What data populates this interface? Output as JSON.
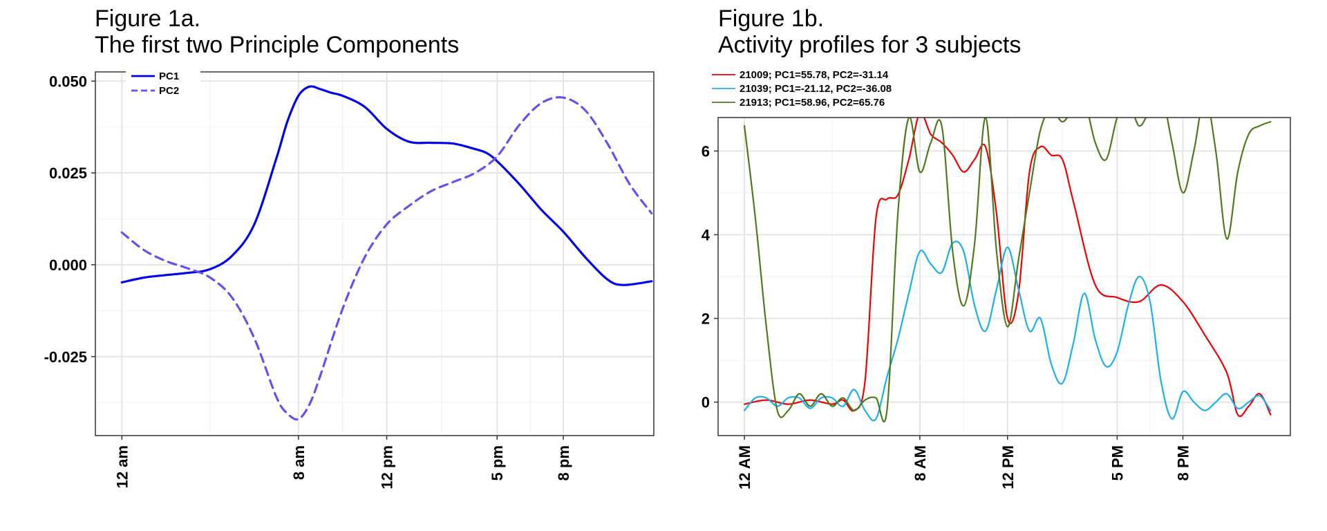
{
  "colors": {
    "grid": "#e5e5e5",
    "frame": "#333333",
    "background": "#ffffff"
  },
  "chart_data": [
    {
      "type": "line",
      "title": "Figure 1a.",
      "subtitle": "The first two Principle Components",
      "xlabel": "",
      "ylabel": "",
      "x_unit": "hour of day",
      "xlim": [
        -1.2,
        24.1
      ],
      "ylim": [
        -0.0465,
        0.0525
      ],
      "yticks": [
        0.05,
        0.025,
        0.0,
        -0.025
      ],
      "ytick_labels": [
        "0.050",
        "0.025",
        "0.000",
        "-0.025"
      ],
      "xticks": [
        0,
        8,
        12,
        17,
        20
      ],
      "xtick_labels": [
        "12 am",
        "8 am",
        "12 pm",
        "5 pm",
        "8 pm"
      ],
      "grid": true,
      "legend_position": "top-left",
      "series": [
        {
          "name": "PC1",
          "color": "#0000ee",
          "dash": "solid",
          "x": [
            0,
            1,
            2,
            3,
            4,
            5,
            6,
            7,
            7.5,
            8,
            8.5,
            9,
            9.5,
            10,
            11,
            12,
            13,
            14,
            15,
            16,
            16.5,
            17,
            18,
            19,
            20,
            21,
            22,
            22.7,
            24
          ],
          "y": [
            -0.0048,
            -0.0035,
            -0.0028,
            -0.0022,
            -0.0012,
            0.0025,
            0.011,
            0.029,
            0.039,
            0.046,
            0.0485,
            0.0478,
            0.0468,
            0.046,
            0.043,
            0.037,
            0.0335,
            0.0332,
            0.033,
            0.0315,
            0.0305,
            0.0282,
            0.022,
            0.015,
            0.009,
            0.002,
            -0.004,
            -0.0055,
            -0.0045
          ]
        },
        {
          "name": "PC2",
          "color": "#6a4ef0",
          "dash": "dashed",
          "x": [
            0,
            1,
            2,
            3,
            4,
            5,
            6,
            7,
            7.5,
            8,
            8.5,
            9,
            10,
            11,
            12,
            13,
            14,
            15,
            16,
            17,
            18,
            19,
            20,
            21,
            22,
            23,
            24
          ],
          "y": [
            0.0088,
            0.004,
            0.001,
            -0.001,
            -0.0035,
            -0.009,
            -0.02,
            -0.036,
            -0.0405,
            -0.042,
            -0.038,
            -0.03,
            -0.012,
            0.002,
            0.011,
            0.016,
            0.02,
            0.0225,
            0.025,
            0.0295,
            0.038,
            0.044,
            0.0455,
            0.042,
            0.033,
            0.022,
            0.014
          ]
        }
      ]
    },
    {
      "type": "line",
      "title": "Figure 1b.",
      "subtitle": "Activity profiles for 3 subjects",
      "xlabel": "",
      "ylabel": "",
      "x_unit": "hour of day",
      "xlim": [
        -1.2,
        24.9
      ],
      "ylim": [
        -0.8,
        6.8
      ],
      "yticks": [
        0,
        2,
        4,
        6
      ],
      "ytick_labels": [
        "0",
        "2",
        "4",
        "6"
      ],
      "xticks": [
        0,
        8,
        12,
        17,
        20
      ],
      "xtick_labels": [
        "12 AM",
        "8 AM",
        "12 PM",
        "5 PM",
        "8 PM"
      ],
      "grid": true,
      "legend_position": "top-left",
      "series": [
        {
          "name": "21009; PC1=55.78, PC2=-31.14",
          "color": "#ee0000",
          "x": [
            0,
            1,
            2,
            3,
            4,
            4.5,
            5,
            5.5,
            6,
            6.5,
            7,
            7.5,
            8,
            8.5,
            9,
            9.5,
            10,
            10.5,
            11,
            11.5,
            12,
            12.5,
            13,
            13.5,
            14,
            14.5,
            15,
            16,
            17,
            18,
            19,
            20,
            21,
            22,
            22.5,
            23,
            23.5,
            24
          ],
          "y": [
            -0.05,
            0.05,
            -0.05,
            0.05,
            -0.05,
            0.05,
            -0.2,
            0.5,
            4.4,
            4.85,
            4.95,
            5.8,
            6.9,
            6.4,
            6.2,
            5.9,
            5.5,
            5.8,
            6.1,
            4.5,
            2.0,
            2.6,
            5.5,
            6.1,
            5.9,
            5.8,
            4.8,
            2.8,
            2.5,
            2.4,
            2.8,
            2.4,
            1.6,
            0.7,
            -0.3,
            -0.1,
            0.2,
            -0.3
          ]
        },
        {
          "name": "21039; PC1=-21.12, PC2=-36.08",
          "color": "#1aaff0",
          "x": [
            0,
            0.5,
            1,
            1.5,
            2,
            2.5,
            3,
            3.5,
            4,
            4.5,
            5,
            5.5,
            6,
            6.5,
            7,
            7.5,
            8,
            8.5,
            9,
            9.5,
            10,
            10.5,
            11,
            11.5,
            12,
            12.5,
            13,
            13.5,
            14,
            14.5,
            15,
            15.5,
            16,
            16.5,
            17,
            17.5,
            18,
            18.5,
            19,
            19.5,
            20,
            20.5,
            21,
            21.5,
            22,
            22.5,
            23,
            23.5,
            24
          ],
          "y": [
            -0.2,
            0.1,
            0.1,
            -0.1,
            0.1,
            0.1,
            -0.15,
            0.1,
            0.1,
            -0.1,
            0.3,
            -0.2,
            -0.4,
            0.6,
            1.5,
            2.6,
            3.6,
            3.3,
            3.1,
            3.8,
            3.6,
            2.3,
            1.7,
            2.7,
            3.7,
            2.7,
            1.7,
            2.0,
            0.9,
            0.45,
            1.4,
            2.6,
            1.5,
            0.85,
            1.2,
            2.3,
            3.0,
            2.4,
            0.5,
            -0.4,
            0.25,
            0.0,
            -0.2,
            0.0,
            0.2,
            -0.15,
            0.0,
            0.15,
            -0.2
          ]
        },
        {
          "name": "21913; PC1=58.96, PC2=65.76",
          "color": "#4e7a1c",
          "x": [
            0,
            0.5,
            1,
            1.5,
            2,
            2.5,
            3,
            3.5,
            4,
            4.5,
            5,
            5.5,
            6,
            6.5,
            7,
            7.5,
            8,
            8.5,
            9,
            9.5,
            10,
            10.5,
            11,
            11.5,
            12,
            12.5,
            13,
            13.5,
            14,
            14.5,
            15,
            15.5,
            16,
            16.5,
            17,
            17.5,
            18,
            18.5,
            19,
            19.5,
            20,
            20.5,
            21,
            21.5,
            22,
            22.5,
            23,
            23.5,
            24
          ],
          "y": [
            6.6,
            4.4,
            1.8,
            -0.2,
            -0.2,
            0.2,
            -0.1,
            0.2,
            -0.1,
            0.1,
            -0.2,
            0.05,
            0.1,
            -0.2,
            4.5,
            6.8,
            5.5,
            6.2,
            6.6,
            3.6,
            2.3,
            3.8,
            6.8,
            3.6,
            1.8,
            3.4,
            5.0,
            6.5,
            7.0,
            6.7,
            7.0,
            7.2,
            6.2,
            5.8,
            6.8,
            7.2,
            6.6,
            7.0,
            7.4,
            6.2,
            5.0,
            6.0,
            7.3,
            6.0,
            3.9,
            5.5,
            6.4,
            6.6,
            6.7
          ]
        }
      ]
    }
  ]
}
